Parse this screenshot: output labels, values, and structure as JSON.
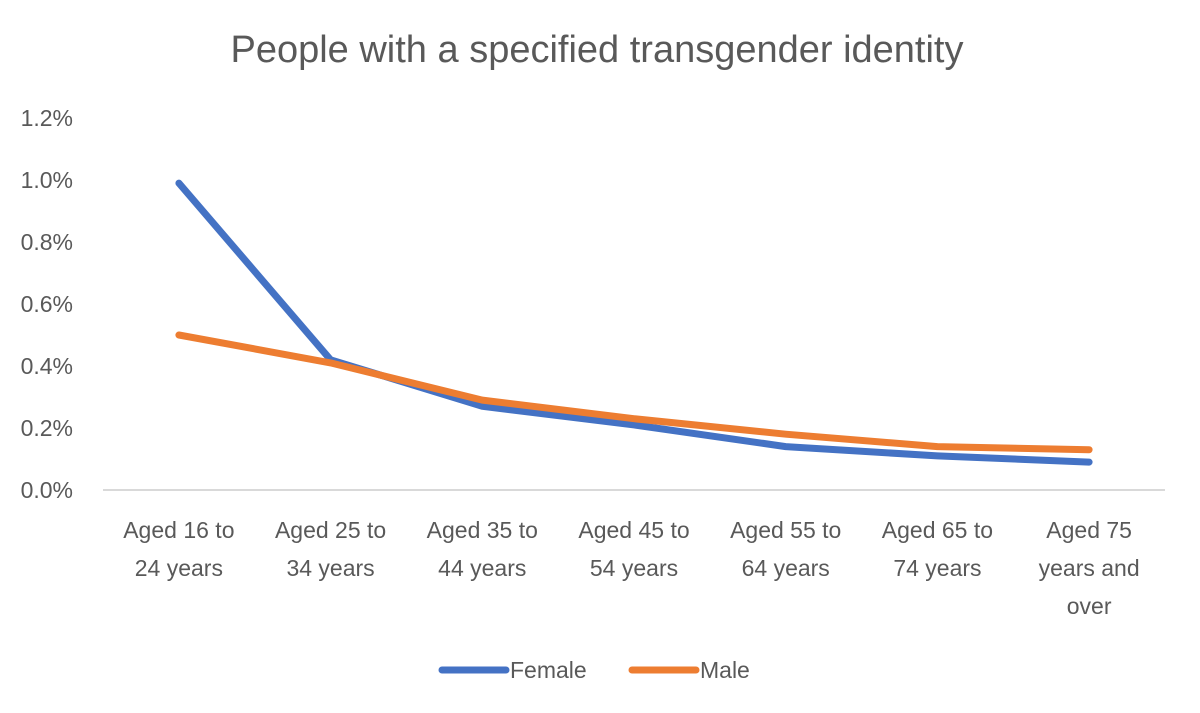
{
  "chart_data": {
    "type": "line",
    "title": "People with a specified transgender identity",
    "xlabel": "",
    "ylabel": "",
    "categories": [
      [
        "Aged 16 to",
        "24 years"
      ],
      [
        "Aged 25 to",
        "34 years"
      ],
      [
        "Aged 35 to",
        "44 years"
      ],
      [
        "Aged 45 to",
        "54 years"
      ],
      [
        "Aged 55 to",
        "64 years"
      ],
      [
        "Aged 65 to",
        "74 years"
      ],
      [
        "Aged 75",
        "years and",
        "over"
      ]
    ],
    "y_ticks": [
      "0.0%",
      "0.2%",
      "0.4%",
      "0.6%",
      "0.8%",
      "1.0%",
      "1.2%"
    ],
    "ylim": [
      0,
      1.2
    ],
    "y_unit": "%",
    "grid": false,
    "legend_position": "bottom",
    "series": [
      {
        "name": "Female",
        "color": "#4472C4",
        "values": [
          0.99,
          0.42,
          0.27,
          0.21,
          0.14,
          0.11,
          0.09
        ]
      },
      {
        "name": "Male",
        "color": "#ED7D31",
        "values": [
          0.5,
          0.41,
          0.29,
          0.23,
          0.18,
          0.14,
          0.13
        ]
      }
    ]
  }
}
